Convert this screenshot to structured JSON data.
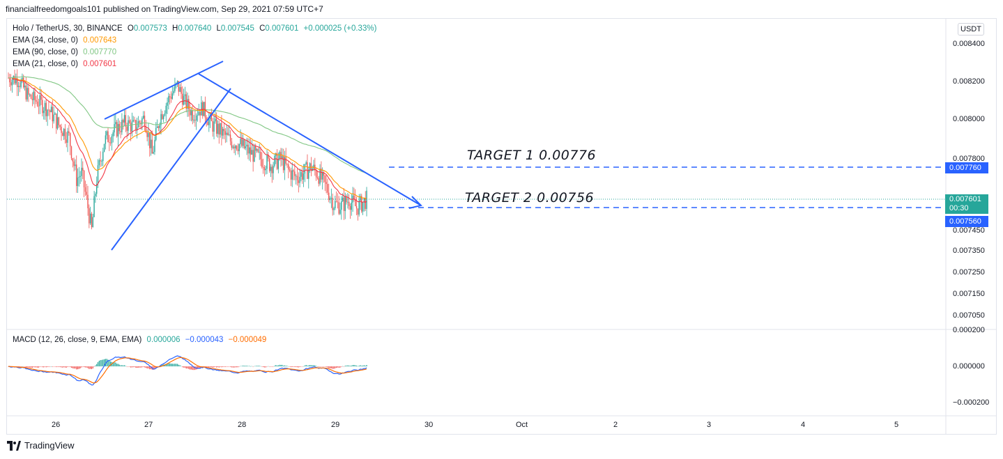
{
  "header": {
    "publisher": "financialfreedomgoals101 published on TradingView.com, Sep 29, 2021 07:59 UTC+7"
  },
  "legend": {
    "symbol": "Holo / TetherUS, 30, BINANCE",
    "o_key": "O",
    "o_val": "0.007573",
    "h_key": "H",
    "h_val": "0.007640",
    "l_key": "L",
    "l_val": "0.007545",
    "c_key": "C",
    "c_val": "0.007601",
    "change": "+0.000025 (+0.33%)",
    "ema34_label": "EMA (34, close, 0)",
    "ema34_val": "0.007643",
    "ema90_label": "EMA (90, close, 0)",
    "ema90_val": "0.007770",
    "ema21_label": "EMA (21, close, 0)",
    "ema21_val": "0.007601",
    "macd_label": "MACD (12, 26, close, 9, EMA, EMA)",
    "macd_hist": "0.000006",
    "macd_line": "−0.000043",
    "macd_signal": "−0.000049"
  },
  "currency_button": "USDT",
  "annotations": {
    "target1": "TARGET 1  0.00776",
    "target2": "TARGET 2  0.00756"
  },
  "price_tags": {
    "upper_level": "0.007760",
    "last_price": "0.007601",
    "countdown": "00:30",
    "lower_level": "0.007560"
  },
  "footer": {
    "brand": "TradingView"
  },
  "colors": {
    "up": "#26a69a",
    "down": "#ef5350",
    "ema34": "#ff9800",
    "ema90": "#81c784",
    "ema21": "#f23645",
    "drawing": "#2962ff",
    "macd_line": "#2962ff",
    "signal_line": "#ff6d00"
  },
  "chart_data": {
    "type": "candlestick",
    "instrument": "Holo / TetherUS",
    "interval": "30",
    "price_axis_ticks": [
      "0.008400",
      "0.008200",
      "0.008000",
      "0.007800",
      "0.007450",
      "0.007350",
      "0.007250",
      "0.007150",
      "0.007050"
    ],
    "macd_axis_ticks": [
      "0.000200",
      "0.000000",
      "−0.000200"
    ],
    "time_axis_ticks": [
      "26",
      "27",
      "28",
      "29",
      "30",
      "Oct",
      "2",
      "3",
      "4",
      "5"
    ],
    "levels": {
      "target1": 0.00776,
      "target2": 0.00756,
      "last": 0.007601
    },
    "close_path": [
      [
        0,
        0.00822
      ],
      [
        8,
        0.00821
      ],
      [
        16,
        0.00812
      ],
      [
        24,
        0.00809
      ],
      [
        32,
        0.00805
      ],
      [
        40,
        0.00797
      ],
      [
        48,
        0.00791
      ],
      [
        54,
        0.0077
      ],
      [
        58,
        0.00773
      ],
      [
        62,
        0.0076
      ],
      [
        66,
        0.00745
      ],
      [
        70,
        0.0077
      ],
      [
        76,
        0.00789
      ],
      [
        84,
        0.00794
      ],
      [
        92,
        0.00798
      ],
      [
        100,
        0.00796
      ],
      [
        108,
        0.00801
      ],
      [
        114,
        0.00782
      ],
      [
        120,
        0.00801
      ],
      [
        128,
        0.00812
      ],
      [
        134,
        0.00818
      ],
      [
        140,
        0.00809
      ],
      [
        146,
        0.00803
      ],
      [
        154,
        0.00806
      ],
      [
        160,
        0.00798
      ],
      [
        168,
        0.00794
      ],
      [
        176,
        0.00789
      ],
      [
        184,
        0.00787
      ],
      [
        192,
        0.00783
      ],
      [
        200,
        0.0078
      ],
      [
        208,
        0.00777
      ],
      [
        216,
        0.0078
      ],
      [
        222,
        0.00774
      ],
      [
        228,
        0.00771
      ],
      [
        234,
        0.00773
      ],
      [
        240,
        0.00776
      ],
      [
        246,
        0.00772
      ],
      [
        252,
        0.00766
      ],
      [
        258,
        0.00758
      ],
      [
        264,
        0.00757
      ],
      [
        270,
        0.0076
      ],
      [
        276,
        0.00756
      ],
      [
        280,
        0.00758
      ],
      [
        284,
        0.0076
      ]
    ]
  }
}
